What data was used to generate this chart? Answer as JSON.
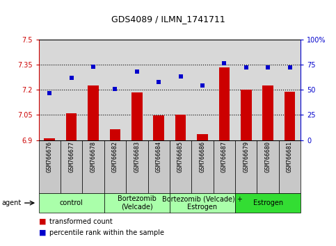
{
  "title": "GDS4089 / ILMN_1741711",
  "samples": [
    "GSM766676",
    "GSM766677",
    "GSM766678",
    "GSM766682",
    "GSM766683",
    "GSM766684",
    "GSM766685",
    "GSM766686",
    "GSM766687",
    "GSM766679",
    "GSM766680",
    "GSM766681"
  ],
  "transformed_count": [
    6.91,
    7.06,
    7.225,
    6.965,
    7.185,
    7.046,
    7.052,
    6.935,
    7.335,
    7.2,
    7.225,
    7.19
  ],
  "percentile_rank": [
    47,
    62,
    73,
    51,
    68,
    58,
    63,
    54,
    76,
    72,
    72,
    72
  ],
  "group_labels": [
    "control",
    "Bortezomib\n(Velcade)",
    "Bortezomib (Velcade) +\nEstrogen",
    "Estrogen"
  ],
  "group_starts": [
    0,
    3,
    6,
    9
  ],
  "group_ends": [
    3,
    6,
    9,
    12
  ],
  "group_colors": [
    "#aaffaa",
    "#aaffaa",
    "#aaffaa",
    "#33dd33"
  ],
  "ylim_left": [
    6.9,
    7.5
  ],
  "ylim_right": [
    0,
    100
  ],
  "yticks_left": [
    6.9,
    7.05,
    7.2,
    7.35,
    7.5
  ],
  "yticks_right": [
    0,
    25,
    50,
    75,
    100
  ],
  "ytick_labels_left": [
    "6.9",
    "7.05",
    "7.2",
    "7.35",
    "7.5"
  ],
  "ytick_labels_right": [
    "0",
    "25",
    "50",
    "75",
    "100%"
  ],
  "hgrid_lines": [
    7.05,
    7.2,
    7.35
  ],
  "bar_color": "#cc0000",
  "scatter_color": "#0000cc",
  "bar_width": 0.5,
  "legend_bar_label": "transformed count",
  "legend_scatter_label": "percentile rank within the sample",
  "agent_label": "agent",
  "title_fontsize": 9,
  "tick_label_fontsize": 7,
  "xtick_fontsize": 6,
  "group_label_fontsize": 7,
  "legend_fontsize": 7,
  "agent_fontsize": 7,
  "plot_bg_color": "#d8d8d8",
  "xtick_bg_color": "#c8c8c8"
}
